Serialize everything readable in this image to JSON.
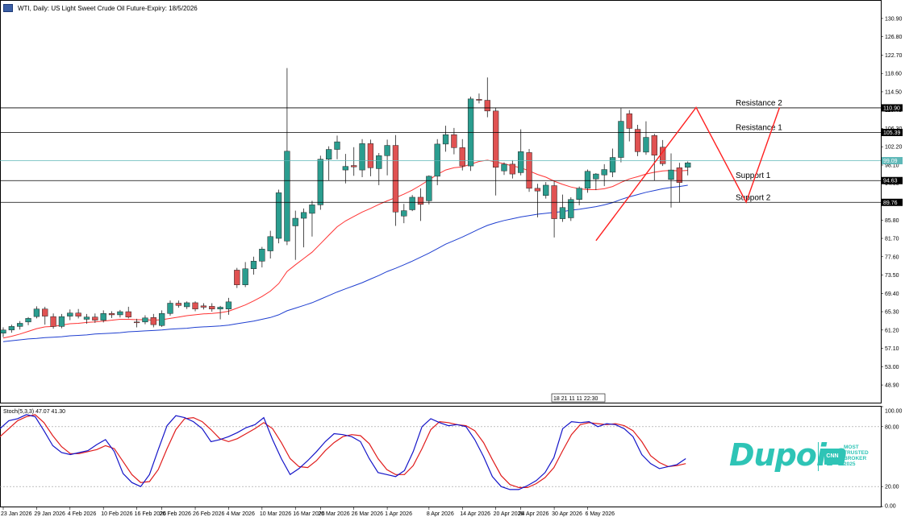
{
  "header": {
    "title": "WTI, Daily:  US Light Sweet Crude Oil Future-Expiry: 18/5/2026"
  },
  "brand": {
    "name": "Dupoin",
    "badge": "CNN",
    "tagline": [
      "MOST",
      "TRUSTED",
      "BROKER",
      "2025"
    ]
  },
  "colors": {
    "bull": "#2a9d8f",
    "bear": "#e05252",
    "ma_fast": "#ff3333",
    "ma_slow": "#1f3fd0",
    "stoch_main": "#1414c8",
    "stoch_signal": "#e01c1c",
    "pattern": "#ff2020",
    "current_price_line": "#5fb8b8"
  },
  "chart_data": [
    {
      "type": "candlestick",
      "title": "WTI, Daily:  US Light Sweet Crude Oil Future-Expiry: 18/5/2026",
      "ylim": [
        44.95,
        134.85
      ],
      "y_ticks": [
        "130.90",
        "126.80",
        "122.70",
        "118.60",
        "114.50",
        "110.40",
        "106.30",
        "102.20",
        "98.10",
        "94.00",
        "89.90",
        "85.80",
        "81.70",
        "77.60",
        "73.50",
        "69.40",
        "65.30",
        "61.20",
        "57.10",
        "53.00",
        "48.90"
      ],
      "x_labels": [
        "23 Jan 2026",
        "29 Jan 2026",
        "4 Feb 2026",
        "10 Feb 2026",
        "16 Feb 2026",
        "20 Feb 2026",
        "26 Feb 2026",
        "4 Mar 2026",
        "10 Mar 2026",
        "16 Mar 2026",
        "20 Mar 2026",
        "26 Mar 2026",
        "1 Apr 2026",
        "8 Apr 2026",
        "14 Apr 2026",
        "20 Apr 2026",
        "24 Apr 2026",
        "30 Apr 2026",
        "6 May 2026"
      ],
      "x_label_index": [
        0,
        4,
        8,
        12,
        16,
        19,
        23,
        27,
        31,
        35,
        38,
        42,
        46,
        51,
        55,
        59,
        62,
        66,
        70
      ],
      "candles": [
        {
          "o": 60.5,
          "h": 61.8,
          "l": 59.6,
          "c": 61.2
        },
        {
          "o": 61.2,
          "h": 62.4,
          "l": 60.6,
          "c": 62.0
        },
        {
          "o": 62.0,
          "h": 63.2,
          "l": 61.3,
          "c": 62.7
        },
        {
          "o": 63.0,
          "h": 64.1,
          "l": 62.3,
          "c": 63.8
        },
        {
          "o": 64.2,
          "h": 66.5,
          "l": 63.8,
          "c": 65.9
        },
        {
          "o": 65.9,
          "h": 66.4,
          "l": 62.4,
          "c": 64.3
        },
        {
          "o": 64.2,
          "h": 64.9,
          "l": 61.5,
          "c": 62.0
        },
        {
          "o": 62.0,
          "h": 64.8,
          "l": 61.6,
          "c": 64.2
        },
        {
          "o": 64.3,
          "h": 65.8,
          "l": 63.4,
          "c": 65.0
        },
        {
          "o": 65.0,
          "h": 65.9,
          "l": 63.8,
          "c": 64.3
        },
        {
          "o": 63.6,
          "h": 64.8,
          "l": 62.6,
          "c": 64.1
        },
        {
          "o": 64.1,
          "h": 64.9,
          "l": 62.8,
          "c": 63.4
        },
        {
          "o": 63.4,
          "h": 65.6,
          "l": 62.9,
          "c": 64.9
        },
        {
          "o": 64.9,
          "h": 65.4,
          "l": 63.9,
          "c": 64.6
        },
        {
          "o": 64.6,
          "h": 65.7,
          "l": 64.0,
          "c": 65.3
        },
        {
          "o": 65.3,
          "h": 66.4,
          "l": 63.8,
          "c": 64.1
        },
        {
          "o": 63.0,
          "h": 63.7,
          "l": 61.8,
          "c": 62.9
        },
        {
          "o": 63.0,
          "h": 64.5,
          "l": 62.5,
          "c": 63.9
        },
        {
          "o": 64.0,
          "h": 64.8,
          "l": 61.8,
          "c": 62.4
        },
        {
          "o": 62.2,
          "h": 65.6,
          "l": 61.9,
          "c": 64.9
        },
        {
          "o": 64.9,
          "h": 67.8,
          "l": 64.4,
          "c": 67.2
        },
        {
          "o": 67.2,
          "h": 67.8,
          "l": 66.2,
          "c": 66.7
        },
        {
          "o": 66.4,
          "h": 67.6,
          "l": 65.9,
          "c": 67.3
        },
        {
          "o": 67.3,
          "h": 67.6,
          "l": 65.4,
          "c": 65.9
        },
        {
          "o": 66.6,
          "h": 67.2,
          "l": 65.8,
          "c": 66.3
        },
        {
          "o": 66.5,
          "h": 67.2,
          "l": 65.3,
          "c": 65.9
        },
        {
          "o": 65.9,
          "h": 66.6,
          "l": 63.6,
          "c": 66.3
        },
        {
          "o": 65.9,
          "h": 68.4,
          "l": 64.6,
          "c": 67.5
        },
        {
          "o": 74.6,
          "h": 75.1,
          "l": 70.6,
          "c": 71.3
        },
        {
          "o": 71.3,
          "h": 76.4,
          "l": 70.8,
          "c": 74.9
        },
        {
          "o": 74.9,
          "h": 77.6,
          "l": 73.6,
          "c": 76.6
        },
        {
          "o": 76.6,
          "h": 79.8,
          "l": 75.2,
          "c": 79.3
        },
        {
          "o": 78.9,
          "h": 83.4,
          "l": 77.2,
          "c": 82.1
        },
        {
          "o": 81.7,
          "h": 92.6,
          "l": 80.6,
          "c": 91.9
        },
        {
          "o": 81.1,
          "h": 119.8,
          "l": 80.2,
          "c": 101.2
        },
        {
          "o": 84.5,
          "h": 87.9,
          "l": 76.9,
          "c": 86.2
        },
        {
          "o": 86.2,
          "h": 88.4,
          "l": 79.7,
          "c": 87.5
        },
        {
          "o": 87.3,
          "h": 90.1,
          "l": 82.1,
          "c": 89.2
        },
        {
          "o": 89.2,
          "h": 100.2,
          "l": 88.1,
          "c": 99.4
        },
        {
          "o": 99.4,
          "h": 102.3,
          "l": 94.7,
          "c": 101.6
        },
        {
          "o": 101.6,
          "h": 104.7,
          "l": 99.4,
          "c": 103.3
        },
        {
          "o": 97.0,
          "h": 100.6,
          "l": 94.0,
          "c": 97.8
        },
        {
          "o": 98.0,
          "h": 102.1,
          "l": 95.7,
          "c": 97.7
        },
        {
          "o": 97.0,
          "h": 103.9,
          "l": 95.4,
          "c": 102.9
        },
        {
          "o": 102.9,
          "h": 103.8,
          "l": 95.6,
          "c": 97.5
        },
        {
          "o": 97.3,
          "h": 100.8,
          "l": 93.6,
          "c": 100.2
        },
        {
          "o": 100.2,
          "h": 103.8,
          "l": 95.8,
          "c": 102.5
        },
        {
          "o": 102.5,
          "h": 104.8,
          "l": 84.5,
          "c": 87.6
        },
        {
          "o": 86.7,
          "h": 89.4,
          "l": 85.1,
          "c": 87.9
        },
        {
          "o": 88.1,
          "h": 91.4,
          "l": 87.8,
          "c": 90.9
        },
        {
          "o": 90.9,
          "h": 92.9,
          "l": 85.6,
          "c": 89.3
        },
        {
          "o": 90.1,
          "h": 95.8,
          "l": 89.3,
          "c": 95.6
        },
        {
          "o": 95.6,
          "h": 103.9,
          "l": 93.6,
          "c": 102.8
        },
        {
          "o": 102.8,
          "h": 106.9,
          "l": 101.1,
          "c": 104.9
        },
        {
          "o": 104.9,
          "h": 106.4,
          "l": 100.5,
          "c": 102.0
        },
        {
          "o": 102.0,
          "h": 103.9,
          "l": 96.9,
          "c": 97.9
        },
        {
          "o": 97.9,
          "h": 113.4,
          "l": 96.8,
          "c": 112.9
        },
        {
          "o": 112.8,
          "h": 114.1,
          "l": 111.9,
          "c": 112.6
        },
        {
          "o": 112.6,
          "h": 117.7,
          "l": 108.8,
          "c": 110.2
        },
        {
          "o": 110.2,
          "h": 110.9,
          "l": 91.3,
          "c": 97.6
        },
        {
          "o": 96.8,
          "h": 98.7,
          "l": 95.9,
          "c": 98.3
        },
        {
          "o": 98.3,
          "h": 99.2,
          "l": 95.1,
          "c": 96.1
        },
        {
          "o": 96.4,
          "h": 106.1,
          "l": 95.8,
          "c": 101.1
        },
        {
          "o": 100.9,
          "h": 101.7,
          "l": 92.1,
          "c": 92.9
        },
        {
          "o": 92.9,
          "h": 93.9,
          "l": 86.4,
          "c": 92.3
        },
        {
          "o": 91.3,
          "h": 94.3,
          "l": 90.6,
          "c": 93.6
        },
        {
          "o": 93.5,
          "h": 94.4,
          "l": 81.9,
          "c": 86.1
        },
        {
          "o": 86.1,
          "h": 91.5,
          "l": 85.4,
          "c": 88.6
        },
        {
          "o": 86.3,
          "h": 90.9,
          "l": 85.6,
          "c": 90.4
        },
        {
          "o": 90.4,
          "h": 93.3,
          "l": 89.1,
          "c": 92.9
        },
        {
          "o": 92.9,
          "h": 97.1,
          "l": 91.9,
          "c": 96.7
        },
        {
          "o": 95.0,
          "h": 96.3,
          "l": 92.5,
          "c": 96.1
        },
        {
          "o": 95.9,
          "h": 98.3,
          "l": 93.4,
          "c": 97.1
        },
        {
          "o": 96.5,
          "h": 101.8,
          "l": 95.4,
          "c": 99.8
        },
        {
          "o": 99.8,
          "h": 110.8,
          "l": 98.7,
          "c": 107.9
        },
        {
          "o": 109.6,
          "h": 110.4,
          "l": 103.4,
          "c": 106.3
        },
        {
          "o": 106.1,
          "h": 107.1,
          "l": 100.1,
          "c": 101.1
        },
        {
          "o": 101.0,
          "h": 107.9,
          "l": 100.4,
          "c": 104.3
        },
        {
          "o": 104.7,
          "h": 105.1,
          "l": 94.6,
          "c": 100.3
        },
        {
          "o": 102.1,
          "h": 103.7,
          "l": 97.9,
          "c": 98.4
        },
        {
          "o": 94.9,
          "h": 100.7,
          "l": 88.6,
          "c": 97.0
        },
        {
          "o": 97.5,
          "h": 98.6,
          "l": 89.7,
          "c": 94.2
        },
        {
          "o": 97.6,
          "h": 98.9,
          "l": 95.8,
          "c": 98.6
        }
      ],
      "ma_fast": [
        59.4,
        59.8,
        60.3,
        60.9,
        61.5,
        61.9,
        62.0,
        62.3,
        62.6,
        62.7,
        62.9,
        63.0,
        63.2,
        63.4,
        63.6,
        63.6,
        63.5,
        63.5,
        63.4,
        63.5,
        63.8,
        64.1,
        64.4,
        64.6,
        64.8,
        64.9,
        65.1,
        65.4,
        66.1,
        66.8,
        67.7,
        68.7,
        69.9,
        71.6,
        74.3,
        75.8,
        77.2,
        78.6,
        80.5,
        82.4,
        84.3,
        85.6,
        86.6,
        87.6,
        88.4,
        89.3,
        90.1,
        90.8,
        91.6,
        92.5,
        93.6,
        94.8,
        96.0,
        97.0,
        97.5,
        97.7,
        98.3,
        98.9,
        99.2,
        98.8,
        98.4,
        97.9,
        97.5,
        96.8,
        96.0,
        95.4,
        94.5,
        93.8,
        93.2,
        92.8,
        92.6,
        92.6,
        92.8,
        93.3,
        94.2,
        95.0,
        95.5,
        96.1,
        96.5,
        96.8,
        96.9,
        96.8,
        96.9
      ],
      "ma_slow": [
        58.6,
        58.8,
        59.0,
        59.2,
        59.3,
        59.5,
        59.6,
        59.7,
        59.9,
        60.0,
        60.1,
        60.3,
        60.4,
        60.5,
        60.6,
        60.8,
        60.9,
        61.0,
        61.1,
        61.2,
        61.4,
        61.5,
        61.6,
        61.8,
        61.9,
        62.0,
        62.1,
        62.3,
        62.6,
        62.9,
        63.2,
        63.6,
        64.0,
        64.6,
        65.5,
        66.1,
        66.7,
        67.3,
        68.1,
        68.9,
        69.7,
        70.4,
        71.1,
        71.8,
        72.6,
        73.4,
        74.3,
        75.0,
        75.8,
        76.6,
        77.5,
        78.4,
        79.4,
        80.4,
        81.2,
        82.0,
        82.9,
        83.8,
        84.6,
        85.2,
        85.7,
        86.1,
        86.5,
        86.8,
        87.1,
        87.3,
        87.5,
        87.7,
        88.0,
        88.2,
        88.5,
        88.8,
        89.2,
        89.7,
        90.4,
        91.0,
        91.5,
        92.0,
        92.4,
        92.8,
        93.1,
        93.3,
        93.6
      ],
      "levels": [
        {
          "name": "Resistance 2",
          "value": 110.9,
          "tag": "110.90"
        },
        {
          "name": "Resistance 1",
          "value": 105.39,
          "tag": "105.39"
        },
        {
          "name": "Support 1",
          "value": 94.63,
          "tag": "94.63"
        },
        {
          "name": "Support 2",
          "value": 89.76,
          "tag": "89.76"
        }
      ],
      "current_price": {
        "value": 99.09,
        "tag": "99.09"
      },
      "pattern": [
        [
          71,
          81.2
        ],
        [
          83,
          111.0
        ],
        [
          89,
          89.8
        ],
        [
          93,
          111.0
        ]
      ],
      "period_separator": "18 21 11 11 22:30"
    },
    {
      "type": "line",
      "title": "Stoch(5,3,3) 47.07 41.30",
      "ylim": [
        0,
        100
      ],
      "y_ticks": [
        "100.00",
        "80.00",
        "20.00",
        "0.00"
      ],
      "levels": [
        80,
        20
      ],
      "series": [
        {
          "name": "main",
          "values": [
            78,
            86,
            88,
            92,
            90,
            76,
            61,
            54,
            52,
            54,
            56,
            62,
            67,
            55,
            33,
            24,
            20,
            32,
            57,
            81,
            91,
            89,
            85,
            78,
            65,
            67,
            70,
            74,
            79,
            82,
            89,
            67,
            48,
            32,
            38,
            46,
            55,
            65,
            73,
            72,
            70,
            65,
            48,
            34,
            32,
            30,
            36,
            55,
            80,
            88,
            84,
            81,
            82,
            80,
            67,
            50,
            30,
            20,
            17,
            17,
            21,
            26,
            34,
            49,
            78,
            85,
            84,
            85,
            80,
            83,
            82,
            78,
            70,
            52,
            43,
            38,
            40,
            42,
            48
          ]
        },
        {
          "name": "signal",
          "values": [
            70,
            78,
            86,
            90,
            92,
            84,
            71,
            60,
            53,
            53,
            55,
            57,
            61,
            58,
            45,
            32,
            24,
            25,
            37,
            58,
            77,
            88,
            89,
            85,
            77,
            68,
            65,
            68,
            73,
            78,
            84,
            78,
            64,
            48,
            40,
            39,
            46,
            56,
            64,
            70,
            72,
            71,
            63,
            48,
            37,
            32,
            32,
            41,
            58,
            77,
            85,
            84,
            82,
            81,
            76,
            64,
            47,
            31,
            22,
            19,
            19,
            23,
            29,
            39,
            56,
            72,
            82,
            84,
            83,
            82,
            83,
            81,
            76,
            65,
            51,
            44,
            40,
            41,
            43
          ]
        }
      ]
    }
  ]
}
